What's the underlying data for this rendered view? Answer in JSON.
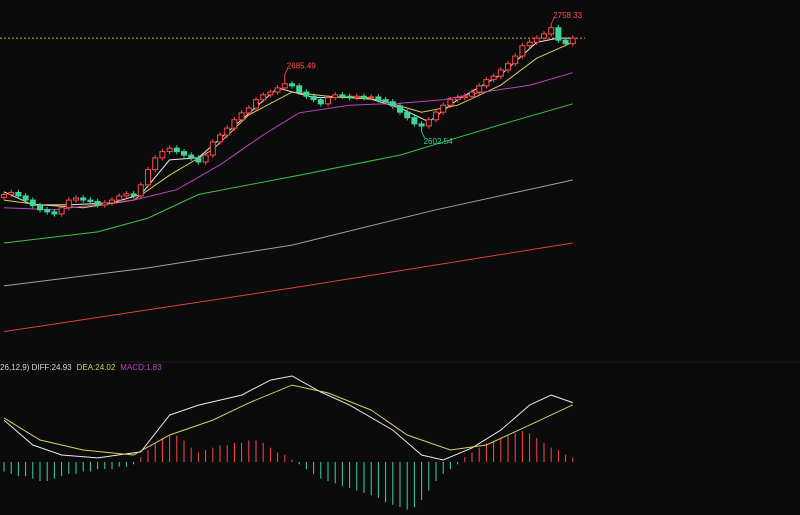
{
  "chart_data": {
    "type": "candlestick",
    "ylim": [
      2273,
      2793
    ],
    "up_color": "#ff4a4a",
    "down_color": "#3fd49a",
    "open": [
      2508,
      2512,
      2515,
      2510,
      2504,
      2496,
      2490,
      2487,
      2484,
      2493,
      2504,
      2507,
      2504,
      2502,
      2497,
      2500,
      2504,
      2510,
      2513,
      2510,
      2526,
      2548,
      2565,
      2574,
      2579,
      2574,
      2569,
      2565,
      2559,
      2569,
      2588,
      2598,
      2608,
      2620,
      2630,
      2637,
      2649,
      2656,
      2660,
      2666,
      2672,
      2669,
      2660,
      2654,
      2649,
      2643,
      2652,
      2656,
      2654,
      2652,
      2654,
      2652,
      2653,
      2649,
      2646,
      2640,
      2631,
      2623,
      2614,
      2611,
      2620,
      2631,
      2641,
      2649,
      2652,
      2654,
      2660,
      2669,
      2678,
      2683,
      2692,
      2701,
      2712,
      2727,
      2732,
      2738,
      2744,
      2753,
      2735,
      2730
    ],
    "high": [
      2516,
      2519,
      2519,
      2514,
      2508,
      2500,
      2494,
      2491,
      2497,
      2508,
      2511,
      2511,
      2508,
      2506,
      2504,
      2508,
      2514,
      2517,
      2517,
      2530,
      2552,
      2569,
      2578,
      2583,
      2583,
      2578,
      2573,
      2569,
      2573,
      2592,
      2602,
      2612,
      2624,
      2634,
      2641,
      2653,
      2660,
      2664,
      2670,
      2685.49,
      2676,
      2673,
      2664,
      2658,
      2653,
      2656,
      2660,
      2660,
      2658,
      2658,
      2658,
      2657,
      2657,
      2653,
      2650,
      2644,
      2635,
      2627,
      2618,
      2624,
      2635,
      2645,
      2653,
      2656,
      2658,
      2664,
      2673,
      2682,
      2687,
      2696,
      2705,
      2716,
      2731,
      2736,
      2742,
      2748,
      2758.33,
      2757,
      2739,
      2742
    ],
    "low": [
      2504,
      2508,
      2506,
      2500,
      2492,
      2486,
      2483,
      2480,
      2480,
      2489,
      2500,
      2500,
      2498,
      2493,
      2493,
      2496,
      2500,
      2506,
      2506,
      2506,
      2522,
      2544,
      2561,
      2570,
      2570,
      2565,
      2561,
      2555,
      2555,
      2565,
      2584,
      2594,
      2604,
      2616,
      2626,
      2633,
      2645,
      2652,
      2656,
      2662,
      2665,
      2656,
      2650,
      2645,
      2639,
      2639,
      2648,
      2650,
      2648,
      2648,
      2648,
      2648,
      2645,
      2642,
      2636,
      2627,
      2619,
      2610,
      2602.54,
      2607,
      2616,
      2627,
      2637,
      2645,
      2648,
      2650,
      2656,
      2665,
      2674,
      2679,
      2688,
      2697,
      2708,
      2723,
      2728,
      2734,
      2740,
      2731,
      2726,
      2726
    ],
    "close": [
      2512,
      2515,
      2510,
      2504,
      2496,
      2490,
      2487,
      2484,
      2493,
      2504,
      2507,
      2504,
      2502,
      2497,
      2500,
      2504,
      2510,
      2513,
      2510,
      2526,
      2548,
      2565,
      2574,
      2579,
      2574,
      2569,
      2565,
      2559,
      2569,
      2588,
      2598,
      2608,
      2620,
      2630,
      2637,
      2649,
      2656,
      2660,
      2666,
      2672,
      2669,
      2660,
      2654,
      2649,
      2643,
      2652,
      2656,
      2654,
      2652,
      2654,
      2652,
      2653,
      2649,
      2646,
      2640,
      2631,
      2623,
      2614,
      2611,
      2620,
      2631,
      2641,
      2649,
      2652,
      2654,
      2660,
      2669,
      2678,
      2683,
      2692,
      2701,
      2712,
      2727,
      2732,
      2738,
      2744,
      2753,
      2735,
      2730,
      2738
    ],
    "last_price": 2738,
    "last_price_color": "#e0a030",
    "price_labels": [
      {
        "text": "2758.33",
        "value": 2758.33,
        "index": 76,
        "color": "#ff4a4a"
      },
      {
        "text": "2685.49",
        "value": 2685.49,
        "index": 39,
        "color": "#ff4a4a"
      },
      {
        "text": "2602.54",
        "value": 2602.54,
        "index": 58,
        "color": "#3fd49a"
      }
    ],
    "lines": [
      {
        "color": "#e8e8e8",
        "x": [
          0,
          4,
          9,
          15,
          19,
          23,
          27,
          33,
          38,
          43,
          50,
          55,
          59,
          63,
          69,
          74,
          77,
          79
        ],
        "values": [
          2516,
          2497,
          2497,
          2500,
          2512,
          2562,
          2565,
          2620,
          2666,
          2652,
          2653,
          2637,
          2617,
          2649,
          2685,
          2732,
          2738,
          2738
        ]
      },
      {
        "color": "#d8d060",
        "x": [
          0,
          5,
          11,
          18,
          23,
          29,
          34,
          40,
          45,
          52,
          58,
          63,
          69,
          74,
          79
        ],
        "values": [
          2504,
          2497,
          2493,
          2504,
          2540,
          2577,
          2627,
          2660,
          2654,
          2649,
          2631,
          2641,
          2670,
          2709,
          2732
        ]
      },
      {
        "color": "#c040c8",
        "x": [
          0,
          7,
          18,
          24,
          30,
          36,
          41,
          48,
          55,
          61,
          66,
          73,
          79
        ],
        "values": [
          2493,
          2490,
          2504,
          2519,
          2555,
          2598,
          2630,
          2641,
          2644,
          2649,
          2659,
          2670,
          2688
        ]
      },
      {
        "color": "#3cc43c",
        "x": [
          0,
          13,
          20,
          27,
          41,
          55,
          62,
          69,
          79
        ],
        "values": [
          2442,
          2458,
          2478,
          2512,
          2540,
          2569,
          2591,
          2613,
          2643
        ]
      },
      {
        "color": "#a0a0a0",
        "x": [
          0,
          20,
          40,
          60,
          79
        ],
        "values": [
          2380,
          2406,
          2439,
          2490,
          2533
        ]
      },
      {
        "color": "#e04040",
        "x": [
          0,
          40,
          79
        ],
        "values": [
          2314,
          2377,
          2442
        ]
      }
    ],
    "macd": {
      "ylim": [
        -22.3,
        42
      ],
      "legend": [
        {
          "text": "26,12,9) DIFF:24.93",
          "color": "#d8d8d8"
        },
        {
          "text": "DEA:24.02",
          "color": "#d8d060"
        },
        {
          "text": "MACD:1.83",
          "color": "#c040c8"
        }
      ],
      "diff": {
        "color": "#e8e8e8",
        "x": [
          0,
          4,
          8,
          13,
          19,
          23,
          27,
          33,
          37,
          40,
          44,
          48,
          54,
          58,
          61,
          65,
          69,
          73,
          76,
          79
        ],
        "values": [
          17.6,
          7.1,
          2.9,
          1.7,
          4.2,
          19.7,
          23.9,
          28.1,
          34.4,
          36.1,
          29.4,
          23.9,
          13.4,
          2.9,
          0.8,
          5.9,
          13.4,
          23.9,
          28.1,
          24.93
        ]
      },
      "dea": {
        "color": "#d8d060",
        "x": [
          0,
          5,
          11,
          18,
          23,
          29,
          34,
          40,
          45,
          51,
          56,
          62,
          67,
          73,
          79
        ],
        "values": [
          18.5,
          9.2,
          5.0,
          2.9,
          11.3,
          17.6,
          24.8,
          32.3,
          29.0,
          21.8,
          11.3,
          5.0,
          7.1,
          15.5,
          24.02
        ]
      },
      "histogram": [
        -4,
        -5,
        -6,
        -6,
        -7,
        -8,
        -8,
        -7,
        -6,
        -5,
        -5,
        -4,
        -4,
        -3,
        -3,
        -3,
        -2,
        -2,
        -1,
        2,
        5,
        8,
        10,
        11,
        11,
        9,
        6,
        4,
        5,
        6,
        7,
        7,
        8,
        8,
        9,
        9,
        8,
        6,
        4,
        3,
        1,
        -1,
        -3,
        -5,
        -7,
        -8,
        -9,
        -10,
        -11,
        -12,
        -13,
        -14,
        -15,
        -17,
        -18,
        -19,
        -20,
        -19,
        -16,
        -12,
        -8,
        -5,
        -3,
        -1,
        2,
        4,
        6,
        8,
        9,
        10,
        11,
        12,
        13,
        12,
        10,
        8,
        6,
        5,
        3,
        1.83
      ]
    }
  }
}
